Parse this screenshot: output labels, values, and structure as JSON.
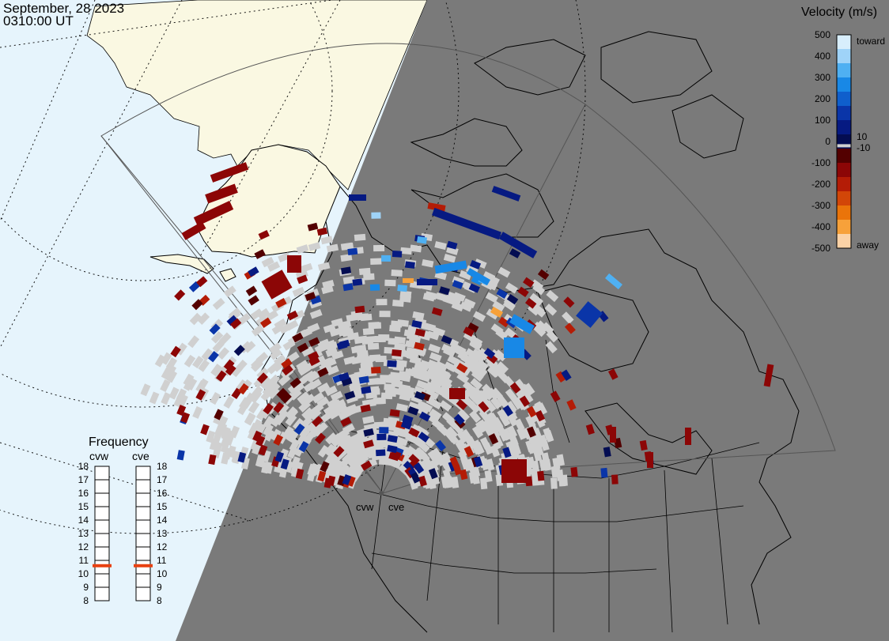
{
  "header": {
    "date": "September, 28 2023",
    "time": "0310:00 UT"
  },
  "radars": [
    {
      "id": "cvw"
    },
    {
      "id": "cve"
    }
  ],
  "velocity_scale": {
    "title": "Velocity (m/s)",
    "toward_label": "toward",
    "away_label": "away",
    "ticks": [
      "500",
      "400",
      "300",
      "200",
      "100",
      "0",
      "-100",
      "-200",
      "-300",
      "-400",
      "-500"
    ],
    "inner_pos": "10",
    "inner_neg": "-10",
    "colors": [
      "#d8eefc",
      "#9fd3f8",
      "#4fb0f2",
      "#1888e6",
      "#0f5fcc",
      "#0a35a8",
      "#061a82",
      "#040d52",
      "#530000",
      "#8c0606",
      "#b41c06",
      "#d24608",
      "#ea740a",
      "#f7a13a",
      "#fbd2a6"
    ],
    "ground_scatter_color": "#d0d0d0"
  },
  "frequency_panel": {
    "title": "Frequency",
    "columns": [
      "cvw",
      "cve"
    ],
    "ticks": [
      "18",
      "17",
      "16",
      "15",
      "14",
      "13",
      "12",
      "11",
      "10",
      "9",
      "8"
    ],
    "values_mhz": {
      "cvw": 10.6,
      "cve": 10.6
    },
    "marker_color": "#e84010"
  },
  "map": {
    "night_shade_color": "#7a7a7a",
    "ocean_color": "#e6f4fc",
    "land_color": "#faf8e2"
  }
}
